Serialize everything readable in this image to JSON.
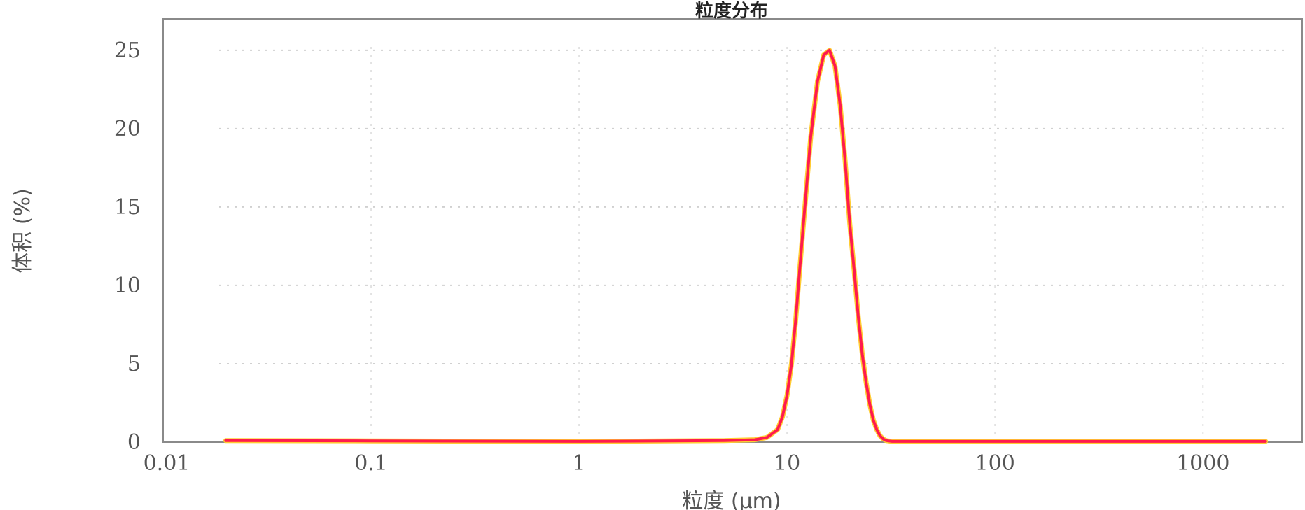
{
  "chart_data": {
    "type": "line",
    "title": "粒度分布",
    "xlabel": "粒度 (μm)",
    "ylabel": "体积 (%)",
    "x_scale": "log",
    "xlim": [
      0.01,
      3000
    ],
    "ylim": [
      0,
      27
    ],
    "x_ticks": [
      0.01,
      0.1,
      1,
      10,
      100,
      1000
    ],
    "x_tick_labels": [
      "0.01",
      "0.1",
      "1",
      "10",
      "100",
      "1000"
    ],
    "y_ticks": [
      0,
      5,
      10,
      15,
      20,
      25
    ],
    "y_tick_labels": [
      "0",
      "5",
      "10",
      "15",
      "20",
      "25"
    ],
    "grid": true,
    "series": [
      {
        "color": "#ff1a4d",
        "x": [
          0.02,
          0.1,
          1,
          5,
          7,
          8,
          9,
          9.5,
          10,
          10.5,
          11,
          11.5,
          12,
          13,
          14,
          15,
          16,
          17,
          18,
          19,
          20,
          21,
          22,
          23,
          24,
          25,
          26,
          27,
          28,
          29,
          30,
          32,
          35,
          40,
          60,
          100,
          1000,
          2000
        ],
        "y": [
          0.1,
          0.08,
          0.05,
          0.1,
          0.15,
          0.3,
          0.8,
          1.6,
          3.0,
          5.0,
          7.8,
          11.0,
          14.0,
          19.5,
          23.0,
          24.7,
          25.0,
          24.0,
          21.5,
          18.0,
          14.0,
          11.0,
          8.0,
          5.6,
          3.8,
          2.4,
          1.4,
          0.8,
          0.4,
          0.2,
          0.1,
          0.05,
          0.05,
          0.05,
          0.05,
          0.05,
          0.05,
          0.05
        ]
      }
    ]
  }
}
